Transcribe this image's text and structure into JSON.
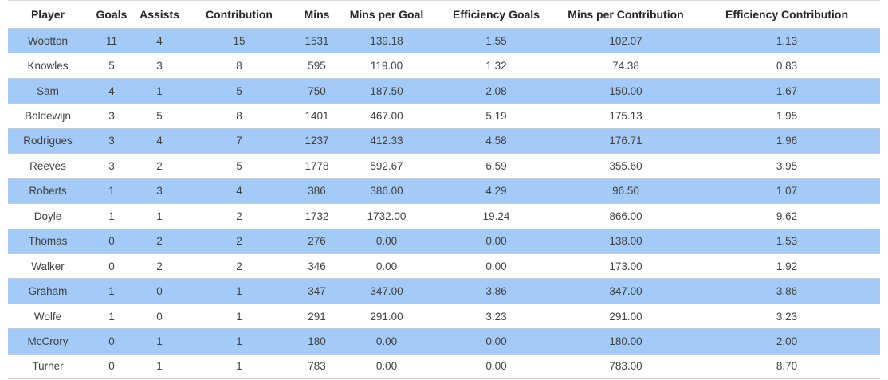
{
  "table": {
    "columns": [
      "Player",
      "Goals",
      "Assists",
      "Contribution",
      "Mins",
      "Mins per Goal",
      "Efficiency Goals",
      "Mins per Contribution",
      "Efficiency Contribution"
    ],
    "rows": [
      [
        "Wootton",
        "11",
        "4",
        "15",
        "1531",
        "139.18",
        "1.55",
        "102.07",
        "1.13"
      ],
      [
        "Knowles",
        "5",
        "3",
        "8",
        "595",
        "119.00",
        "1.32",
        "74.38",
        "0.83"
      ],
      [
        "Sam",
        "4",
        "1",
        "5",
        "750",
        "187.50",
        "2.08",
        "150.00",
        "1.67"
      ],
      [
        "Boldewijn",
        "3",
        "5",
        "8",
        "1401",
        "467.00",
        "5.19",
        "175.13",
        "1.95"
      ],
      [
        "Rodrigues",
        "3",
        "4",
        "7",
        "1237",
        "412.33",
        "4.58",
        "176.71",
        "1.96"
      ],
      [
        "Reeves",
        "3",
        "2",
        "5",
        "1778",
        "592.67",
        "6.59",
        "355.60",
        "3.95"
      ],
      [
        "Roberts",
        "1",
        "3",
        "4",
        "386",
        "386.00",
        "4.29",
        "96.50",
        "1.07"
      ],
      [
        "Doyle",
        "1",
        "1",
        "2",
        "1732",
        "1732.00",
        "19.24",
        "866.00",
        "9.62"
      ],
      [
        "Thomas",
        "0",
        "2",
        "2",
        "276",
        "0.00",
        "0.00",
        "138.00",
        "1.53"
      ],
      [
        "Walker",
        "0",
        "2",
        "2",
        "346",
        "0.00",
        "0.00",
        "173.00",
        "1.92"
      ],
      [
        "Graham",
        "1",
        "0",
        "1",
        "347",
        "347.00",
        "3.86",
        "347.00",
        "3.86"
      ],
      [
        "Wolfe",
        "1",
        "0",
        "1",
        "291",
        "291.00",
        "3.23",
        "291.00",
        "3.23"
      ],
      [
        "McCrory",
        "0",
        "1",
        "1",
        "180",
        "0.00",
        "0.00",
        "180.00",
        "2.00"
      ],
      [
        "Turner",
        "0",
        "1",
        "1",
        "783",
        "0.00",
        "0.00",
        "783.00",
        "8.70"
      ]
    ]
  },
  "colors": {
    "row_highlight": "#a4caf7",
    "row_border": "#cbcbcb",
    "header_text": "#262626",
    "cell_text": "#404040",
    "background": "#ffffff"
  }
}
